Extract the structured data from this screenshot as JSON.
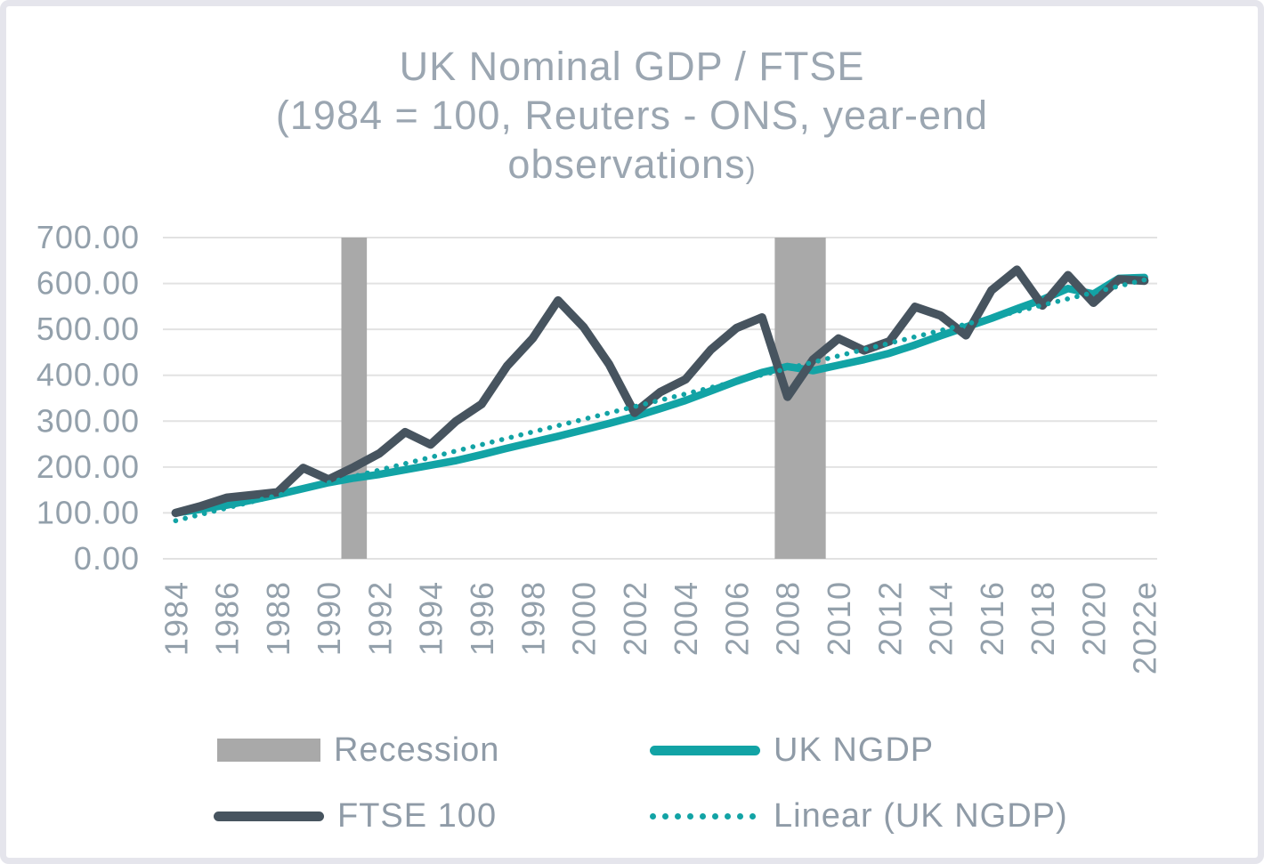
{
  "title": {
    "line1": "UK Nominal GDP / FTSE",
    "line2": "(1984 = 100, Reuters - ONS, year-end",
    "line3": "observations",
    "line3_suffix": ")",
    "color": "#9ba6b1"
  },
  "axes": {
    "y_tick_labels": [
      "0.00",
      "100.00",
      "200.00",
      "300.00",
      "400.00",
      "500.00",
      "600.00",
      "700.00"
    ],
    "x_tick_labels": [
      "1984",
      "1986",
      "1988",
      "1990",
      "1992",
      "1994",
      "1996",
      "1998",
      "2000",
      "2002",
      "2004",
      "2006",
      "2008",
      "2010",
      "2012",
      "2014",
      "2016",
      "2018",
      "2020",
      "2022e"
    ],
    "label_color": "#93a0ab",
    "gridline_color": "#e2e2e2"
  },
  "legend": {
    "items": [
      {
        "label": "Recession",
        "marker": "box",
        "color": "#a9a9a9"
      },
      {
        "label": "UK NGDP",
        "marker": "line",
        "color": "#12a3a5"
      },
      {
        "label": "FTSE 100",
        "marker": "line",
        "color": "#47545f"
      },
      {
        "label": "Linear (UK NGDP)",
        "marker": "dotted-line",
        "color": "#12a3a5"
      }
    ]
  },
  "chart_data": {
    "type": "line",
    "title": "UK Nominal GDP / FTSE (1984 = 100, Reuters - ONS, year-end observations)",
    "x": [
      1984,
      1985,
      1986,
      1987,
      1988,
      1989,
      1990,
      1991,
      1992,
      1993,
      1994,
      1995,
      1996,
      1997,
      1998,
      1999,
      2000,
      2001,
      2002,
      2003,
      2004,
      2005,
      2006,
      2007,
      2008,
      2009,
      2010,
      2011,
      2012,
      2013,
      2014,
      2015,
      2016,
      2017,
      2018,
      2019,
      2020,
      2021,
      2022
    ],
    "x_last_label_suffix": "e",
    "ylim": [
      0,
      700
    ],
    "y_tick_step": 100,
    "grid": true,
    "legend_position": "bottom",
    "series": [
      {
        "name": "UK NGDP",
        "style": "solid",
        "color": "#12a3a5",
        "values": [
          100,
          108,
          117,
          128,
          140,
          153,
          166,
          176,
          184,
          194,
          204,
          214,
          227,
          241,
          254,
          267,
          281,
          295,
          310,
          327,
          345,
          366,
          387,
          406,
          419,
          410,
          422,
          434,
          448,
          466,
          486,
          505,
          524,
          545,
          565,
          589,
          577,
          611,
          613
        ]
      },
      {
        "name": "FTSE 100",
        "style": "solid",
        "color": "#47545f",
        "values": [
          100,
          115,
          133,
          139,
          145,
          198,
          173,
          200,
          230,
          276,
          249,
          300,
          337,
          420,
          480,
          563,
          505,
          424,
          318,
          363,
          391,
          456,
          503,
          526,
          353,
          434,
          480,
          454,
          474,
          549,
          530,
          487,
          585,
          630,
          552,
          618,
          558,
          609,
          606
        ]
      },
      {
        "name": "Linear (UK NGDP)",
        "style": "dotted",
        "color": "#12a3a5",
        "trend_start": 83,
        "trend_end": 608
      }
    ],
    "recession_bands": {
      "color": "#a9a9a9",
      "ranges": [
        {
          "from": 1991,
          "to": 1991
        },
        {
          "from": 2008,
          "to": 2009
        }
      ]
    }
  }
}
